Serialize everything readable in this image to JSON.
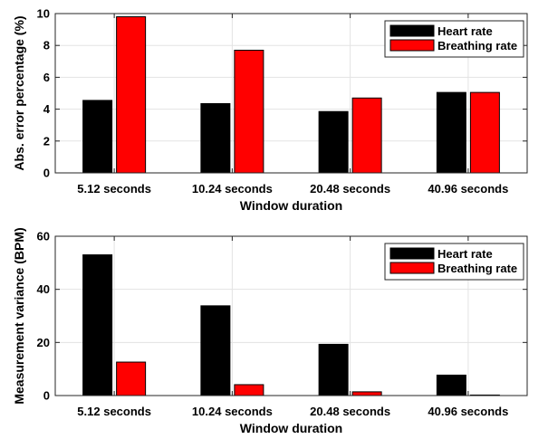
{
  "chart_data": [
    {
      "type": "bar",
      "categories": [
        "5.12 seconds",
        "10.24 seconds",
        "20.48 seconds",
        "40.96 seconds"
      ],
      "series": [
        {
          "name": "Heart rate",
          "values": [
            4.55,
            4.35,
            3.85,
            5.05
          ],
          "color": "#000000"
        },
        {
          "name": "Breathing rate",
          "values": [
            9.8,
            7.7,
            4.7,
            5.05
          ],
          "color": "#ff0000"
        }
      ],
      "xlabel": "Window duration",
      "ylabel": "Abs. error percentage (%)",
      "ylim": [
        0,
        10
      ],
      "yticks": [
        0,
        2,
        4,
        6,
        8,
        10
      ],
      "grid": true,
      "legend_position": "top-right"
    },
    {
      "type": "bar",
      "categories": [
        "5.12 seconds",
        "10.24 seconds",
        "20.48 seconds",
        "40.96 seconds"
      ],
      "series": [
        {
          "name": "Heart rate",
          "values": [
            53,
            33.8,
            19.3,
            7.7
          ],
          "color": "#000000"
        },
        {
          "name": "Breathing rate",
          "values": [
            12.6,
            4.1,
            1.4,
            0.2
          ],
          "color": "#ff0000"
        }
      ],
      "xlabel": "Window duration",
      "ylabel": "Measurement variance (BPM)",
      "ylim": [
        0,
        60
      ],
      "yticks": [
        0,
        20,
        40,
        60
      ],
      "grid": true,
      "legend_position": "top-right"
    }
  ]
}
